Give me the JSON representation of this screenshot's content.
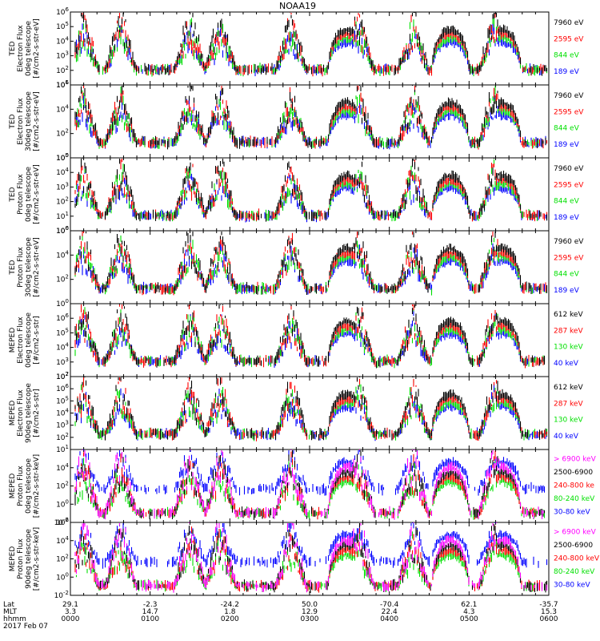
{
  "title": "NOAA19",
  "colors": {
    "black": "#000000",
    "red": "#ff0000",
    "green": "#00e000",
    "blue": "#0000ff",
    "magenta": "#ff00ff"
  },
  "chart_data": [
    {
      "type": "scatter",
      "instrument": "TED",
      "ylabel_lines": [
        "TED",
        "Electron Flux",
        "0deg telescope",
        "[#/cm2-s-str-eV]"
      ],
      "y_exponent_range": [
        1,
        6
      ],
      "y_tick_exponents": [
        1,
        2,
        3,
        4,
        5,
        6
      ],
      "series": [
        {
          "name": "7960 eV",
          "color": "black"
        },
        {
          "name": "2595 eV",
          "color": "red"
        },
        {
          "name": "844 eV",
          "color": "green"
        },
        {
          "name": "189 eV",
          "color": "blue"
        }
      ]
    },
    {
      "type": "scatter",
      "instrument": "TED",
      "ylabel_lines": [
        "TED",
        "Electron Flux",
        "30deg telescope",
        "[#/cm2-s-str-eV]"
      ],
      "y_exponent_range": [
        0,
        6
      ],
      "y_tick_exponents": [
        0,
        2,
        4,
        6
      ],
      "series": [
        {
          "name": "7960 eV",
          "color": "black"
        },
        {
          "name": "2595 eV",
          "color": "red"
        },
        {
          "name": "844 eV",
          "color": "green"
        },
        {
          "name": "189 eV",
          "color": "blue"
        }
      ]
    },
    {
      "type": "scatter",
      "instrument": "TED",
      "ylabel_lines": [
        "TED",
        "Proton Flux",
        "0deg telescope",
        "[#/cm2-s-str-eV]"
      ],
      "y_exponent_range": [
        0,
        5
      ],
      "y_tick_exponents": [
        0,
        1,
        2,
        3,
        4,
        5
      ],
      "series": [
        {
          "name": "7960 eV",
          "color": "black"
        },
        {
          "name": "2595 eV",
          "color": "red"
        },
        {
          "name": "844 eV",
          "color": "green"
        },
        {
          "name": "189 eV",
          "color": "blue"
        }
      ]
    },
    {
      "type": "scatter",
      "instrument": "TED",
      "ylabel_lines": [
        "TED",
        "Proton Flux",
        "30deg telescope",
        "[#/cm2-s-str-eV]"
      ],
      "y_exponent_range": [
        0,
        6
      ],
      "y_tick_exponents": [
        0,
        2,
        4,
        6
      ],
      "series": [
        {
          "name": "7960 eV",
          "color": "black"
        },
        {
          "name": "2595 eV",
          "color": "red"
        },
        {
          "name": "844 eV",
          "color": "green"
        },
        {
          "name": "189 eV",
          "color": "blue"
        }
      ]
    },
    {
      "type": "scatter",
      "instrument": "MEPED",
      "ylabel_lines": [
        "MEPED",
        "Electron Flux",
        "0deg telescope",
        "[#/cm2-s-str]"
      ],
      "y_exponent_range": [
        2,
        7
      ],
      "y_tick_exponents": [
        2,
        3,
        4,
        5,
        6
      ],
      "series": [
        {
          "name": "612 keV",
          "color": "black"
        },
        {
          "name": "287 keV",
          "color": "red"
        },
        {
          "name": "130 keV",
          "color": "green"
        },
        {
          "name": "40 keV",
          "color": "blue"
        }
      ]
    },
    {
      "type": "scatter",
      "instrument": "MEPED",
      "ylabel_lines": [
        "MEPED",
        "Electron Flux",
        "90deg telescope",
        "[#/cm2-s-str]"
      ],
      "y_exponent_range": [
        1,
        7
      ],
      "y_tick_exponents": [
        1,
        2,
        3,
        4,
        5,
        6,
        7
      ],
      "series": [
        {
          "name": "612 keV",
          "color": "black"
        },
        {
          "name": "287 keV",
          "color": "red"
        },
        {
          "name": "130 keV",
          "color": "green"
        },
        {
          "name": "40 keV",
          "color": "blue"
        }
      ]
    },
    {
      "type": "scatter",
      "instrument": "MEPED",
      "ylabel_lines": [
        "MEPED",
        "Proton Flux",
        "0deg telescope",
        "[#/cm2-s-str-keV]"
      ],
      "y_exponent_range": [
        -2,
        6
      ],
      "y_tick_exponents": [
        -2,
        0,
        2,
        4
      ],
      "series": [
        {
          "name": "> 6900 keV",
          "color": "magenta"
        },
        {
          "name": "2500-6900",
          "color": "black"
        },
        {
          "name": "240-800 ke",
          "color": "red"
        },
        {
          "name": "80-240 keV",
          "color": "green"
        },
        {
          "name": "30-80 keV",
          "color": "blue"
        }
      ]
    },
    {
      "type": "scatter",
      "instrument": "MEPED",
      "ylabel_lines": [
        "MEPED",
        "Proton Flux",
        "90deg telescope",
        "[#/cm2-s-str-keV]"
      ],
      "y_exponent_range": [
        -2,
        6
      ],
      "y_tick_exponents": [
        -2,
        0,
        2,
        4,
        6
      ],
      "series": [
        {
          "name": "> 6900 keV",
          "color": "magenta"
        },
        {
          "name": "2500-6900",
          "color": "black"
        },
        {
          "name": "240-800 keV",
          "color": "red"
        },
        {
          "name": "80-240 keV",
          "color": "green"
        },
        {
          "name": "30-80 keV",
          "color": "blue"
        }
      ]
    }
  ],
  "x_axis": {
    "row_labels": [
      "Lat",
      "MLT",
      "hhmm",
      "2017 Feb 07"
    ],
    "columns": [
      {
        "lat": "29.1",
        "mlt": "3.3",
        "hhmm": "0000"
      },
      {
        "lat": "-2.3",
        "mlt": "14.7",
        "hhmm": "0100"
      },
      {
        "lat": "-24.2",
        "mlt": "1.8",
        "hhmm": "0200"
      },
      {
        "lat": "50.0",
        "mlt": "12.9",
        "hhmm": "0300"
      },
      {
        "lat": "-70.4",
        "mlt": "22.4",
        "hhmm": "0400"
      },
      {
        "lat": "62.1",
        "mlt": "4.3",
        "hhmm": "0500"
      },
      {
        "lat": "-35.7",
        "mlt": "15.3",
        "hhmm": "0600"
      }
    ]
  },
  "passes": [
    {
      "center_hhmm": "0010",
      "kind": "spiky"
    },
    {
      "center_hhmm": "0038",
      "kind": "spiky"
    },
    {
      "center_hhmm": "0130",
      "kind": "spiky"
    },
    {
      "center_hhmm": "0153",
      "kind": "spiky"
    },
    {
      "center_hhmm": "0246",
      "kind": "spiky"
    },
    {
      "center_hhmm": "0328",
      "kind": "dome"
    },
    {
      "center_hhmm": "0337",
      "kind": "spiky"
    },
    {
      "center_hhmm": "0418",
      "kind": "spiky"
    },
    {
      "center_hhmm": "0446",
      "kind": "dome"
    },
    {
      "center_hhmm": "0519",
      "kind": "spiky"
    },
    {
      "center_hhmm": "0525",
      "kind": "dome"
    }
  ]
}
